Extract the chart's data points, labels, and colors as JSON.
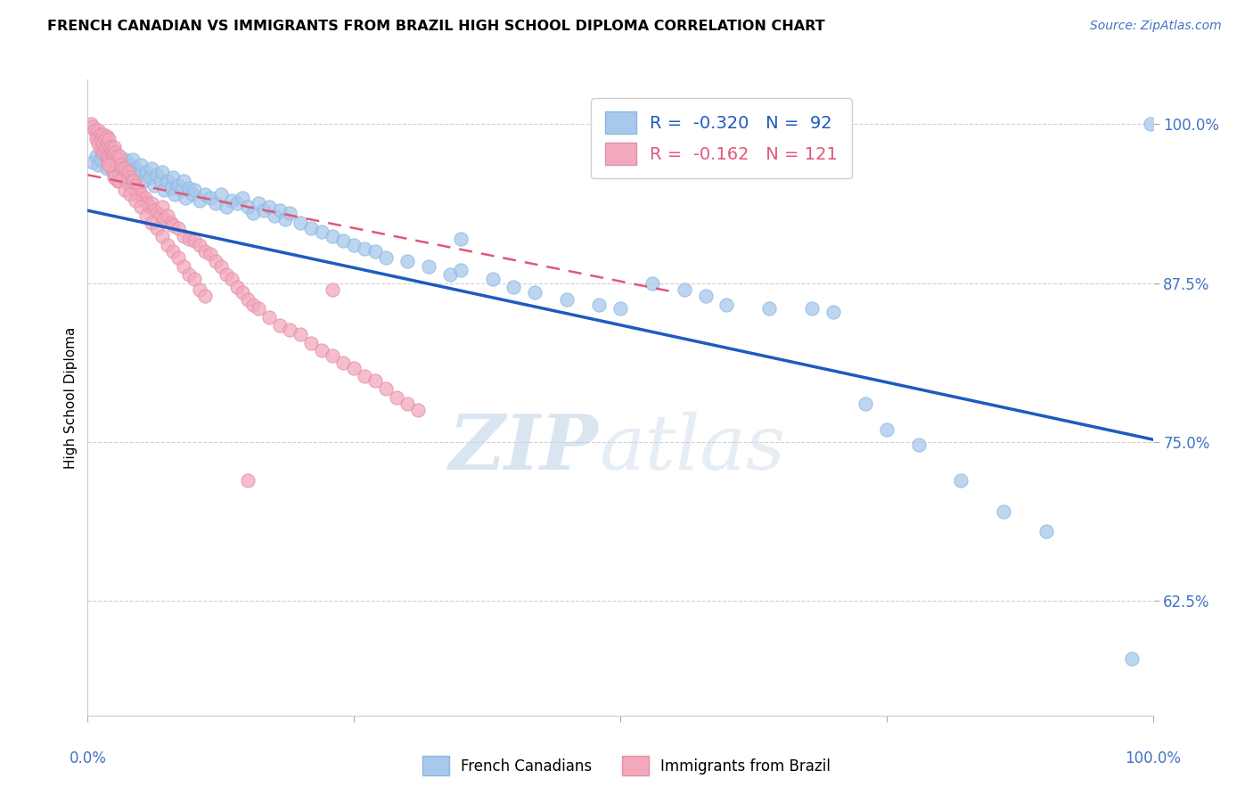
{
  "title": "FRENCH CANADIAN VS IMMIGRANTS FROM BRAZIL HIGH SCHOOL DIPLOMA CORRELATION CHART",
  "source": "Source: ZipAtlas.com",
  "ylabel": "High School Diploma",
  "ytick_labels": [
    "100.0%",
    "87.5%",
    "75.0%",
    "62.5%"
  ],
  "ytick_values": [
    1.0,
    0.875,
    0.75,
    0.625
  ],
  "xlim": [
    0.0,
    1.0
  ],
  "ylim": [
    0.535,
    1.035
  ],
  "legend_label1": "French Canadians",
  "legend_label2": "Immigrants from Brazil",
  "r1": -0.32,
  "n1": 92,
  "r2": -0.162,
  "n2": 121,
  "blue_color": "#A8C8EC",
  "pink_color": "#F4A8BC",
  "blue_line_color": "#1E5BBF",
  "pink_line_color": "#E05878",
  "watermark_zip": "ZIP",
  "watermark_atlas": "atlas",
  "title_fontsize": 11.5,
  "source_fontsize": 10,
  "blue_scatter_x": [
    0.005,
    0.008,
    0.01,
    0.012,
    0.015,
    0.018,
    0.02,
    0.022,
    0.025,
    0.028,
    0.03,
    0.032,
    0.035,
    0.038,
    0.04,
    0.042,
    0.045,
    0.048,
    0.05,
    0.052,
    0.055,
    0.058,
    0.06,
    0.062,
    0.065,
    0.068,
    0.07,
    0.072,
    0.075,
    0.078,
    0.08,
    0.082,
    0.085,
    0.088,
    0.09,
    0.092,
    0.095,
    0.098,
    0.1,
    0.105,
    0.11,
    0.115,
    0.12,
    0.125,
    0.13,
    0.135,
    0.14,
    0.145,
    0.15,
    0.155,
    0.16,
    0.165,
    0.17,
    0.175,
    0.18,
    0.185,
    0.19,
    0.2,
    0.21,
    0.22,
    0.23,
    0.24,
    0.25,
    0.26,
    0.27,
    0.28,
    0.3,
    0.32,
    0.34,
    0.35,
    0.38,
    0.4,
    0.42,
    0.45,
    0.48,
    0.5,
    0.53,
    0.56,
    0.58,
    0.6,
    0.64,
    0.68,
    0.7,
    0.73,
    0.75,
    0.78,
    0.82,
    0.86,
    0.9,
    0.98,
    0.998,
    0.35
  ],
  "blue_scatter_y": [
    0.97,
    0.975,
    0.968,
    0.972,
    0.978,
    0.965,
    0.97,
    0.968,
    0.975,
    0.962,
    0.968,
    0.965,
    0.972,
    0.96,
    0.968,
    0.972,
    0.965,
    0.96,
    0.968,
    0.955,
    0.962,
    0.958,
    0.965,
    0.952,
    0.96,
    0.955,
    0.962,
    0.948,
    0.955,
    0.95,
    0.958,
    0.945,
    0.952,
    0.948,
    0.955,
    0.942,
    0.95,
    0.945,
    0.948,
    0.94,
    0.945,
    0.942,
    0.938,
    0.945,
    0.935,
    0.94,
    0.938,
    0.942,
    0.935,
    0.93,
    0.938,
    0.932,
    0.935,
    0.928,
    0.932,
    0.925,
    0.93,
    0.922,
    0.918,
    0.915,
    0.912,
    0.908,
    0.905,
    0.902,
    0.9,
    0.895,
    0.892,
    0.888,
    0.882,
    0.885,
    0.878,
    0.872,
    0.868,
    0.862,
    0.858,
    0.855,
    0.875,
    0.87,
    0.865,
    0.858,
    0.855,
    0.855,
    0.852,
    0.78,
    0.76,
    0.748,
    0.72,
    0.695,
    0.68,
    0.58,
    1.0,
    0.91
  ],
  "pink_scatter_x": [
    0.003,
    0.005,
    0.006,
    0.008,
    0.008,
    0.01,
    0.01,
    0.012,
    0.012,
    0.013,
    0.014,
    0.015,
    0.015,
    0.016,
    0.017,
    0.018,
    0.018,
    0.019,
    0.019,
    0.02,
    0.02,
    0.021,
    0.021,
    0.022,
    0.022,
    0.023,
    0.023,
    0.024,
    0.025,
    0.025,
    0.026,
    0.026,
    0.027,
    0.028,
    0.028,
    0.029,
    0.03,
    0.03,
    0.031,
    0.032,
    0.033,
    0.034,
    0.035,
    0.036,
    0.037,
    0.038,
    0.039,
    0.04,
    0.041,
    0.042,
    0.043,
    0.044,
    0.045,
    0.046,
    0.048,
    0.05,
    0.052,
    0.054,
    0.056,
    0.058,
    0.06,
    0.062,
    0.065,
    0.068,
    0.07,
    0.072,
    0.075,
    0.078,
    0.08,
    0.085,
    0.09,
    0.095,
    0.1,
    0.105,
    0.11,
    0.115,
    0.12,
    0.125,
    0.13,
    0.135,
    0.14,
    0.145,
    0.15,
    0.155,
    0.16,
    0.17,
    0.18,
    0.19,
    0.2,
    0.21,
    0.22,
    0.23,
    0.24,
    0.25,
    0.26,
    0.27,
    0.28,
    0.29,
    0.3,
    0.31,
    0.02,
    0.025,
    0.03,
    0.035,
    0.04,
    0.045,
    0.05,
    0.055,
    0.06,
    0.065,
    0.07,
    0.075,
    0.08,
    0.085,
    0.09,
    0.095,
    0.1,
    0.105,
    0.11,
    0.23,
    0.15
  ],
  "pink_scatter_y": [
    1.0,
    0.998,
    0.995,
    0.992,
    0.988,
    0.995,
    0.985,
    0.992,
    0.98,
    0.988,
    0.985,
    0.992,
    0.978,
    0.988,
    0.982,
    0.99,
    0.975,
    0.985,
    0.97,
    0.988,
    0.975,
    0.982,
    0.968,
    0.978,
    0.965,
    0.98,
    0.972,
    0.975,
    0.982,
    0.962,
    0.978,
    0.958,
    0.975,
    0.972,
    0.955,
    0.968,
    0.975,
    0.96,
    0.968,
    0.965,
    0.96,
    0.958,
    0.965,
    0.958,
    0.955,
    0.962,
    0.952,
    0.958,
    0.955,
    0.95,
    0.955,
    0.948,
    0.952,
    0.945,
    0.948,
    0.945,
    0.94,
    0.942,
    0.938,
    0.935,
    0.938,
    0.932,
    0.93,
    0.928,
    0.935,
    0.925,
    0.928,
    0.922,
    0.92,
    0.918,
    0.912,
    0.91,
    0.908,
    0.905,
    0.9,
    0.898,
    0.892,
    0.888,
    0.882,
    0.878,
    0.872,
    0.868,
    0.862,
    0.858,
    0.855,
    0.848,
    0.842,
    0.838,
    0.835,
    0.828,
    0.822,
    0.818,
    0.812,
    0.808,
    0.802,
    0.798,
    0.792,
    0.785,
    0.78,
    0.775,
    0.968,
    0.958,
    0.955,
    0.948,
    0.945,
    0.94,
    0.935,
    0.928,
    0.922,
    0.918,
    0.912,
    0.905,
    0.9,
    0.895,
    0.888,
    0.882,
    0.878,
    0.87,
    0.865,
    0.87,
    0.72
  ],
  "blue_line_x0": 0.0,
  "blue_line_y0": 0.932,
  "blue_line_x1": 1.0,
  "blue_line_y1": 0.752,
  "pink_line_x0": 0.0,
  "pink_line_y0": 0.96,
  "pink_line_x1": 0.55,
  "pink_line_y1": 0.868
}
